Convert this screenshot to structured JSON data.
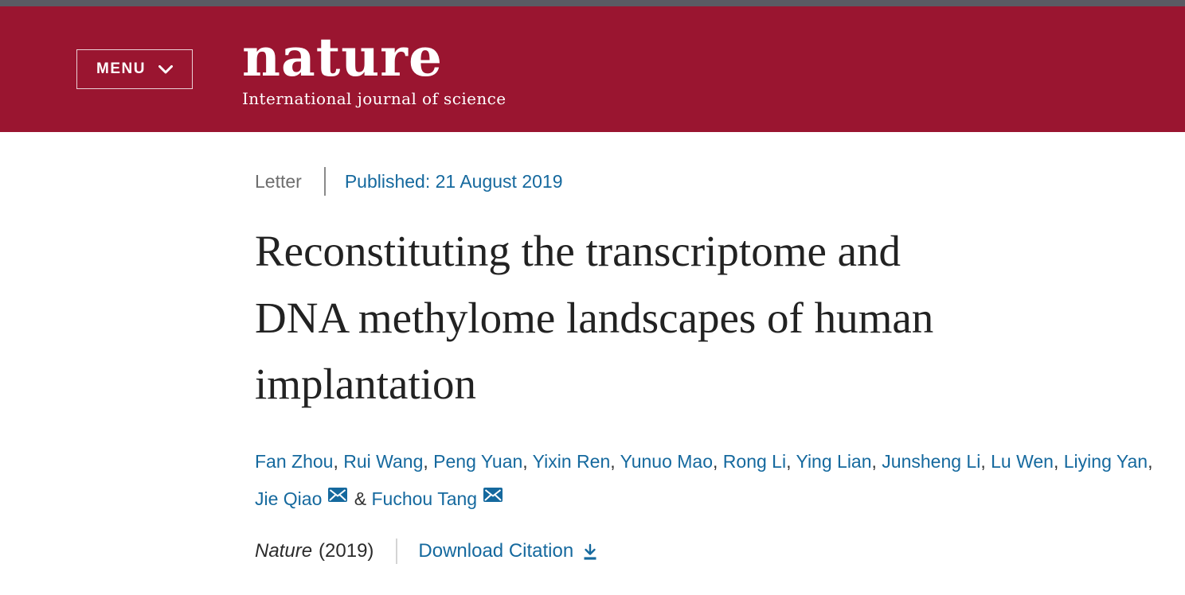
{
  "theme": {
    "header_bg": "#9a1530",
    "top_strip": "#5a5a63",
    "link_blue": "#15699e",
    "title_color": "#222222",
    "label_gray": "#6e6e6e",
    "text_dark": "#2b2b2b"
  },
  "header": {
    "menu_label": "MENU",
    "logo_text": "nature",
    "tagline": "International journal of science"
  },
  "article": {
    "type_label": "Letter",
    "published_text": "Published: 21 August 2019",
    "title": "Reconstituting the transcriptome and DNA methylome landscapes of human implantation",
    "title_lines": [
      "Reconstituting the transcriptome and",
      "DNA methylome landscapes of human",
      "implantation"
    ],
    "authors": [
      {
        "name": "Fan Zhou",
        "email_icon": false
      },
      {
        "name": "Rui Wang",
        "email_icon": false
      },
      {
        "name": "Peng Yuan",
        "email_icon": false
      },
      {
        "name": "Yixin Ren",
        "email_icon": false
      },
      {
        "name": "Yunuo Mao",
        "email_icon": false
      },
      {
        "name": "Rong Li",
        "email_icon": false
      },
      {
        "name": "Ying Lian",
        "email_icon": false
      },
      {
        "name": "Junsheng Li",
        "email_icon": false
      },
      {
        "name": "Lu Wen",
        "email_icon": false
      },
      {
        "name": "Liying Yan",
        "email_icon": false
      },
      {
        "name": "Jie Qiao",
        "email_icon": true
      },
      {
        "name": "Fuchou Tang",
        "email_icon": true
      }
    ],
    "citation": {
      "journal": "Nature",
      "year": "(2019)",
      "download_label": "Download Citation"
    }
  }
}
